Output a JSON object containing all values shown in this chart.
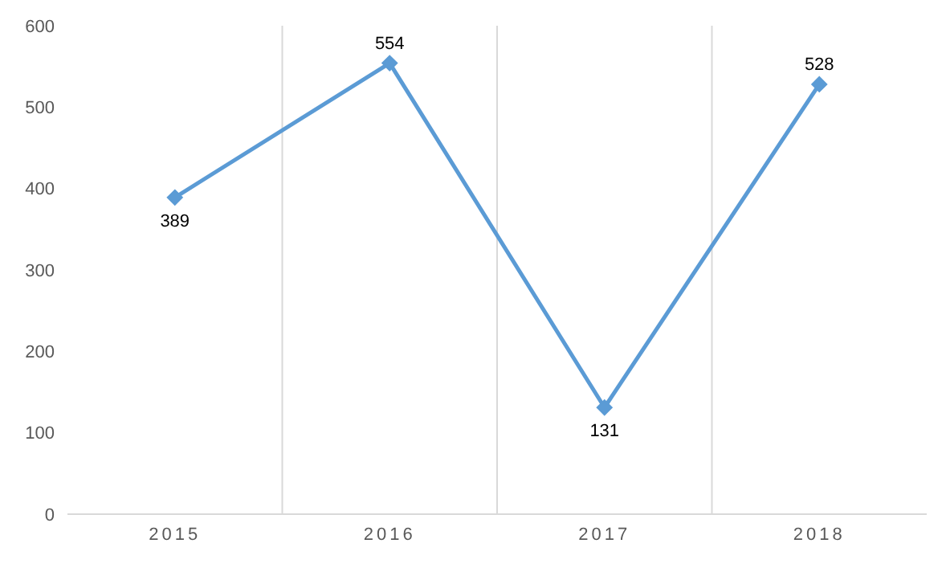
{
  "chart_data": {
    "type": "line",
    "categories": [
      "2015",
      "2016",
      "2017",
      "2018"
    ],
    "series": [
      {
        "color": "#5b9bd5",
        "values": [
          389,
          554,
          131,
          528
        ]
      }
    ],
    "ylim": [
      0,
      600
    ],
    "yticks": [
      0,
      100,
      200,
      300,
      400,
      500,
      600
    ],
    "grid": "x",
    "marker": "diamond",
    "data_labels": true,
    "legend": false
  }
}
